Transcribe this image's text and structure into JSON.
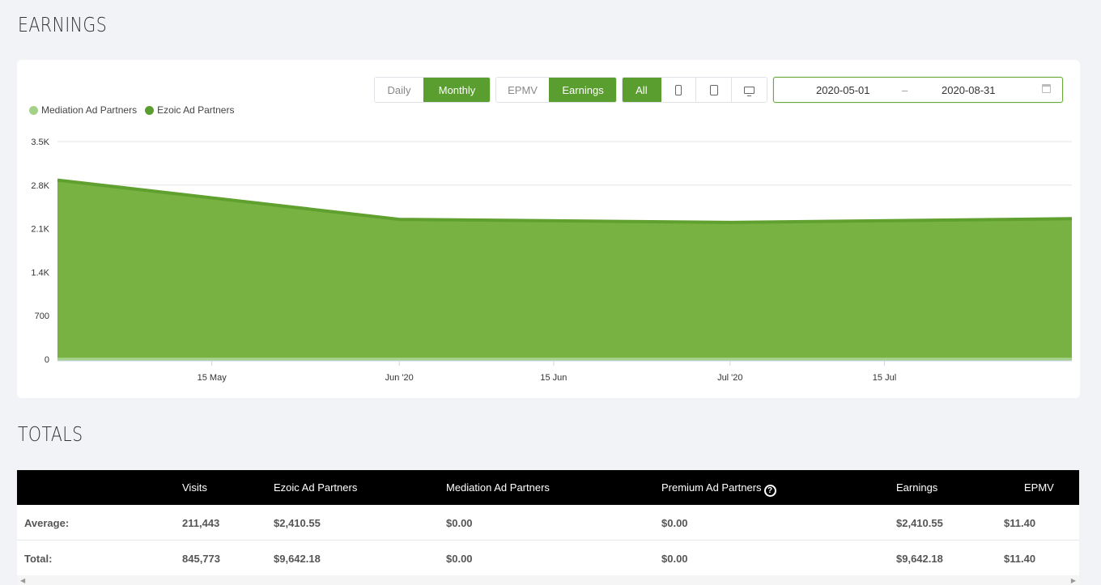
{
  "earnings_title": "EARNINGS",
  "totals_title": "TOTALS",
  "controls": {
    "period": [
      {
        "label": "Daily",
        "active": false
      },
      {
        "label": "Monthly",
        "active": true
      }
    ],
    "metric": [
      {
        "label": "EPMV",
        "active": false
      },
      {
        "label": "Earnings",
        "active": true
      }
    ],
    "device": [
      {
        "label": "All",
        "icon": "",
        "active": true
      },
      {
        "label": "",
        "icon": "phone-icon",
        "active": false
      },
      {
        "label": "",
        "icon": "tablet-icon",
        "active": false
      },
      {
        "label": "",
        "icon": "desktop-icon",
        "active": false
      }
    ],
    "date_start": "2020-05-01",
    "date_sep": "–",
    "date_end": "2020-08-31"
  },
  "colors": {
    "accent": "#5a9e2f",
    "ezoic_fill": "#77b243",
    "ezoic_line": "#5fa02f",
    "mediation": "#a3d189"
  },
  "chart_data": {
    "type": "area",
    "y_tick_labels": [
      "0",
      "700",
      "1.4K",
      "2.1K",
      "2.8K",
      "3.5K"
    ],
    "y_ticks": [
      0,
      700,
      1400,
      2100,
      2800,
      3500
    ],
    "ylim": [
      0,
      3500
    ],
    "x_tick_labels": [
      "15 May",
      "Jun '20",
      "15 Jun",
      "Jul '20",
      "15 Jul"
    ],
    "x_tick_dates": [
      "2020-05-15",
      "2020-06-01",
      "2020-06-15",
      "2020-07-01",
      "2020-07-15"
    ],
    "xlim": [
      "2020-05-01",
      "2020-08-01"
    ],
    "grid": true,
    "legend_position": "top-left",
    "series": [
      {
        "name": "Mediation Ad Partners",
        "x": [
          "2020-05-01",
          "2020-06-01",
          "2020-07-01",
          "2020-08-01"
        ],
        "values": [
          0,
          0,
          0,
          0
        ]
      },
      {
        "name": "Ezoic Ad Partners",
        "x": [
          "2020-05-01",
          "2020-06-01",
          "2020-07-01",
          "2020-08-01"
        ],
        "values": [
          2880,
          2250,
          2200,
          2260
        ]
      }
    ]
  },
  "table": {
    "headers": [
      "",
      "Visits",
      "Ezoic Ad Partners",
      "Mediation Ad Partners",
      "Premium Ad Partners",
      "Earnings",
      "EPMV"
    ],
    "rows": [
      [
        "Average:",
        "211,443",
        "$2,410.55",
        "$0.00",
        "$0.00",
        "$2,410.55",
        "$11.40"
      ],
      [
        "Total:",
        "845,773",
        "$9,642.18",
        "$0.00",
        "$0.00",
        "$9,642.18",
        "$11.40"
      ]
    ]
  }
}
